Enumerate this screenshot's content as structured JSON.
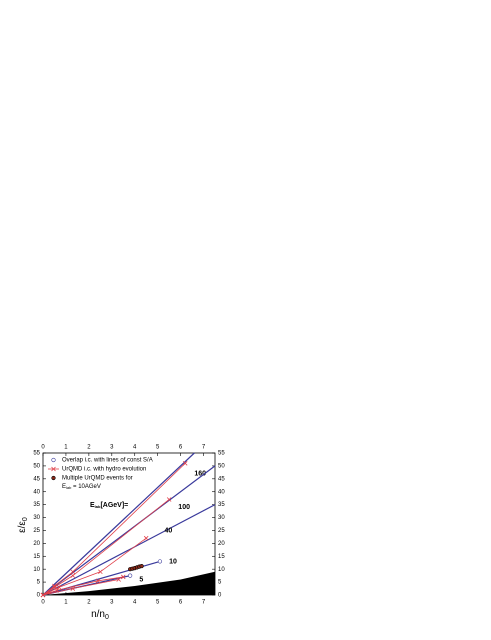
{
  "chart_data": {
    "type": "line",
    "x_label": {
      "main": "n/n",
      "sub": "0"
    },
    "y_label": {
      "main": "ε/ε",
      "sub": "0"
    },
    "xlim": [
      0,
      7.5
    ],
    "ylim": [
      0,
      55
    ],
    "xticks": [
      0,
      1,
      2,
      3,
      4,
      5,
      6,
      7
    ],
    "yticks": [
      0,
      5,
      10,
      15,
      20,
      25,
      30,
      35,
      40,
      45,
      50,
      55
    ],
    "annotation": {
      "main": "E",
      "sub": "lab",
      "rest": "[AGeV]="
    },
    "series": [
      {
        "name": "Overlap i.c. with lines of const S/A",
        "color": "#3a3a9c",
        "marker": "open-circle",
        "x": [
          5.1,
          3.8
        ],
        "values": [
          13,
          7.5
        ]
      },
      {
        "name": "UrQMD i.c. with hydro evolution",
        "color": "#e0404a",
        "marker": "cross",
        "x": [
          0,
          0.5,
          1.3,
          6.2,
          null,
          0,
          0.5,
          1.3,
          5.5,
          null,
          0,
          0.7,
          2.5,
          4.5,
          null,
          0,
          0.6,
          2.4,
          3.5,
          null,
          0,
          1.3,
          3.3
        ],
        "values": [
          0,
          3.5,
          9,
          51,
          null,
          0,
          3,
          7.5,
          37,
          null,
          0,
          3,
          9,
          22,
          null,
          0,
          1.8,
          5.5,
          7,
          null,
          0,
          2.5,
          6
        ]
      },
      {
        "name": "Multiple UrQMD events for",
        "name2": {
          "main": "E",
          "sub": "lab",
          "rest": " = 10AGeV"
        },
        "color": "#8b2a1a",
        "marker": "filled-circle",
        "x": [
          3.8,
          3.9,
          4.0,
          4.1,
          4.2,
          4.3
        ],
        "values": [
          10,
          10.2,
          10.4,
          10.7,
          11,
          11.2
        ]
      }
    ],
    "curves": [
      {
        "label": "160",
        "color": "#3a3a9c",
        "x": [
          0,
          6.6
        ],
        "values": [
          0,
          55
        ]
      },
      {
        "label": "100",
        "color": "#3a3a9c",
        "x": [
          0,
          7.5
        ],
        "values": [
          0,
          50
        ]
      },
      {
        "label": "40",
        "color": "#3a3a9c",
        "x": [
          0,
          7.5
        ],
        "values": [
          0,
          35
        ]
      },
      {
        "label": "10",
        "color": "#3a3a9c",
        "x": [
          0,
          5.1
        ],
        "values": [
          0,
          13
        ]
      },
      {
        "label": "5",
        "color": "#3a3a9c",
        "x": [
          0,
          3.8
        ],
        "values": [
          0,
          7.5
        ]
      }
    ],
    "shaded_region": {
      "color": "#000000",
      "x": [
        0,
        2,
        4,
        6,
        7.5,
        7.5
      ],
      "values": [
        0,
        1.5,
        3.5,
        6,
        9,
        0
      ]
    }
  }
}
